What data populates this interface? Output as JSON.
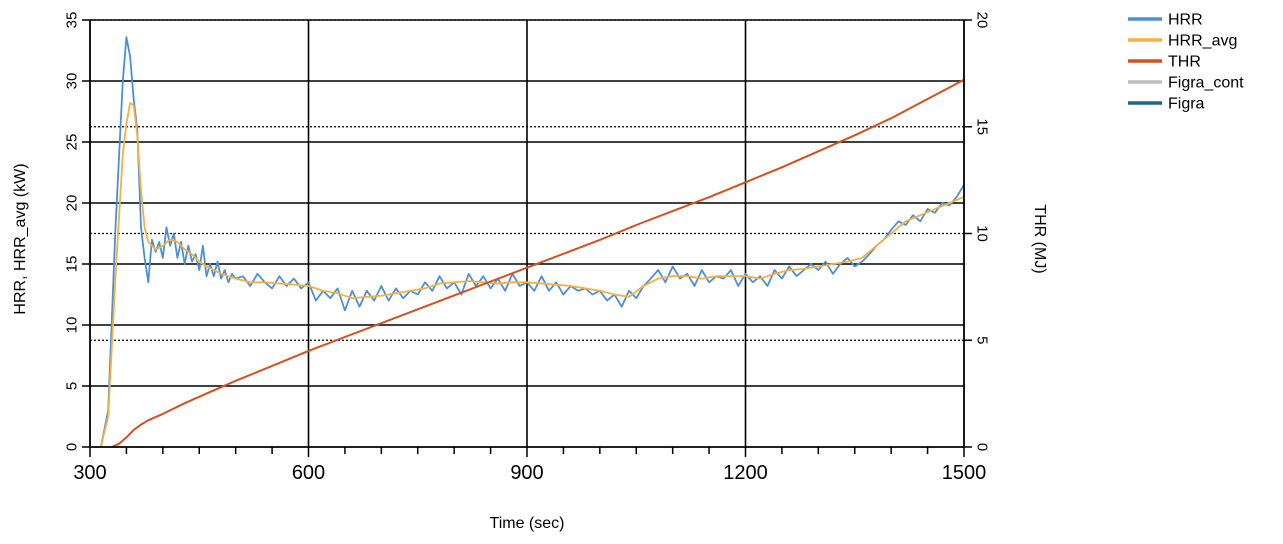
{
  "chart_data": {
    "type": "line",
    "title": "",
    "xlabel": "Time (sec)",
    "ylabel_left": "HRR, HRR_avg (kW)",
    "ylabel_right": "THR (MJ)",
    "xlim": [
      300,
      1500
    ],
    "ylim_left": [
      0,
      35
    ],
    "ylim_right": [
      0,
      20
    ],
    "x_ticks": [
      "300",
      "600",
      "900",
      "1200",
      "1500"
    ],
    "x_tick_values": [
      300,
      600,
      900,
      1200,
      1500
    ],
    "y_left_ticks": [
      "0",
      "5",
      "10",
      "15",
      "20",
      "25",
      "30",
      "35"
    ],
    "y_left_tick_values": [
      0,
      5,
      10,
      15,
      20,
      25,
      30,
      35
    ],
    "y_right_ticks": [
      "0",
      "5",
      "10",
      "15",
      "20"
    ],
    "y_right_tick_values": [
      0,
      5,
      10,
      15,
      20
    ],
    "grid": true,
    "legend_position": "top-right",
    "series": [
      {
        "name": "HRR",
        "axis": "left",
        "color": "#4a90d9",
        "x": [
          315,
          325,
          335,
          345,
          350,
          355,
          360,
          365,
          370,
          375,
          380,
          385,
          390,
          395,
          400,
          405,
          410,
          415,
          420,
          425,
          430,
          435,
          440,
          445,
          450,
          455,
          460,
          465,
          470,
          475,
          480,
          485,
          490,
          495,
          500,
          510,
          520,
          530,
          540,
          550,
          560,
          570,
          580,
          590,
          600,
          610,
          620,
          630,
          640,
          650,
          660,
          670,
          680,
          690,
          700,
          710,
          720,
          730,
          740,
          750,
          760,
          770,
          780,
          790,
          800,
          810,
          820,
          830,
          840,
          850,
          860,
          870,
          880,
          890,
          900,
          910,
          920,
          930,
          940,
          950,
          960,
          970,
          980,
          990,
          1000,
          1010,
          1020,
          1030,
          1040,
          1050,
          1060,
          1070,
          1080,
          1090,
          1100,
          1110,
          1120,
          1130,
          1140,
          1150,
          1160,
          1170,
          1180,
          1190,
          1200,
          1210,
          1220,
          1230,
          1240,
          1250,
          1260,
          1270,
          1280,
          1290,
          1300,
          1310,
          1320,
          1330,
          1340,
          1350,
          1360,
          1370,
          1380,
          1390,
          1400,
          1410,
          1420,
          1430,
          1440,
          1450,
          1460,
          1470,
          1480,
          1490,
          1500
        ],
        "y": [
          0.0,
          3.0,
          18.0,
          30.0,
          33.6,
          32.0,
          28.5,
          26.0,
          18.0,
          15.5,
          13.5,
          17.0,
          16.0,
          16.8,
          15.5,
          18.0,
          16.5,
          17.5,
          15.5,
          16.8,
          15.0,
          16.5,
          15.2,
          15.8,
          14.5,
          16.5,
          14.0,
          15.0,
          14.0,
          15.2,
          13.8,
          14.5,
          13.5,
          14.2,
          13.8,
          14.0,
          13.2,
          14.2,
          13.5,
          13.0,
          14.0,
          13.2,
          13.8,
          13.0,
          13.5,
          12.0,
          12.8,
          12.2,
          13.0,
          11.2,
          12.8,
          11.5,
          12.8,
          12.0,
          13.2,
          12.0,
          13.0,
          12.2,
          12.8,
          12.5,
          13.5,
          12.8,
          14.0,
          13.0,
          13.5,
          12.5,
          14.2,
          13.2,
          14.0,
          13.0,
          13.8,
          12.8,
          14.2,
          13.2,
          13.5,
          12.8,
          14.0,
          12.8,
          13.5,
          12.5,
          13.2,
          12.8,
          13.0,
          12.5,
          12.8,
          12.0,
          12.5,
          11.5,
          12.8,
          12.2,
          13.2,
          13.8,
          14.5,
          13.5,
          14.8,
          13.8,
          14.2,
          13.2,
          14.5,
          13.5,
          14.0,
          13.8,
          14.5,
          13.2,
          14.2,
          13.5,
          14.0,
          13.2,
          14.5,
          13.8,
          14.8,
          14.0,
          14.5,
          15.0,
          14.5,
          15.2,
          14.2,
          15.0,
          15.5,
          14.8,
          15.2,
          15.8,
          16.5,
          17.0,
          17.8,
          18.5,
          18.2,
          19.0,
          18.5,
          19.5,
          19.2,
          20.0,
          19.8,
          20.5,
          21.5
        ]
      },
      {
        "name": "HRR_avg",
        "axis": "left",
        "color": "#f5b041",
        "x": [
          315,
          325,
          335,
          345,
          350,
          355,
          360,
          365,
          370,
          375,
          380,
          390,
          400,
          410,
          420,
          430,
          440,
          450,
          460,
          470,
          480,
          490,
          500,
          520,
          540,
          560,
          580,
          600,
          620,
          640,
          660,
          680,
          700,
          720,
          740,
          760,
          780,
          800,
          820,
          840,
          860,
          880,
          900,
          920,
          940,
          960,
          980,
          1000,
          1020,
          1040,
          1060,
          1080,
          1100,
          1120,
          1140,
          1160,
          1180,
          1200,
          1220,
          1240,
          1260,
          1280,
          1300,
          1320,
          1340,
          1360,
          1380,
          1400,
          1420,
          1440,
          1460,
          1480,
          1500
        ],
        "y": [
          0.0,
          2.5,
          14.0,
          24.0,
          26.5,
          28.2,
          28.0,
          25.5,
          21.0,
          18.0,
          16.8,
          16.2,
          16.5,
          17.0,
          16.8,
          16.2,
          15.8,
          15.2,
          14.8,
          14.5,
          14.2,
          14.0,
          13.8,
          13.5,
          13.5,
          13.4,
          13.3,
          13.2,
          12.8,
          12.6,
          12.2,
          12.3,
          12.4,
          12.6,
          12.8,
          13.0,
          13.4,
          13.5,
          13.6,
          13.5,
          13.4,
          13.5,
          13.5,
          13.4,
          13.3,
          13.2,
          13.0,
          12.8,
          12.5,
          12.3,
          13.2,
          13.8,
          14.0,
          14.0,
          13.8,
          14.0,
          14.0,
          14.0,
          13.8,
          14.2,
          14.5,
          14.6,
          14.8,
          15.0,
          15.2,
          15.5,
          16.5,
          17.5,
          18.5,
          19.0,
          19.5,
          20.0,
          20.5
        ]
      },
      {
        "name": "THR",
        "axis": "right",
        "color": "#d4501e",
        "x": [
          330,
          340,
          350,
          360,
          370,
          380,
          400,
          430,
          460,
          500,
          550,
          600,
          650,
          700,
          750,
          800,
          850,
          900,
          950,
          1000,
          1050,
          1100,
          1150,
          1200,
          1250,
          1300,
          1350,
          1400,
          1450,
          1500
        ],
        "y": [
          0.0,
          0.15,
          0.45,
          0.8,
          1.05,
          1.25,
          1.55,
          2.05,
          2.5,
          3.1,
          3.8,
          4.5,
          5.15,
          5.8,
          6.45,
          7.1,
          7.75,
          8.4,
          9.05,
          9.7,
          10.4,
          11.05,
          11.7,
          12.4,
          13.1,
          13.85,
          14.6,
          15.4,
          16.3,
          17.2
        ]
      },
      {
        "name": "Figra_cont",
        "axis": "left",
        "color": "#bdbdbd",
        "x": [],
        "y": []
      },
      {
        "name": "Figra",
        "axis": "left",
        "color": "#1a6a8a",
        "x": [],
        "y": []
      }
    ]
  }
}
